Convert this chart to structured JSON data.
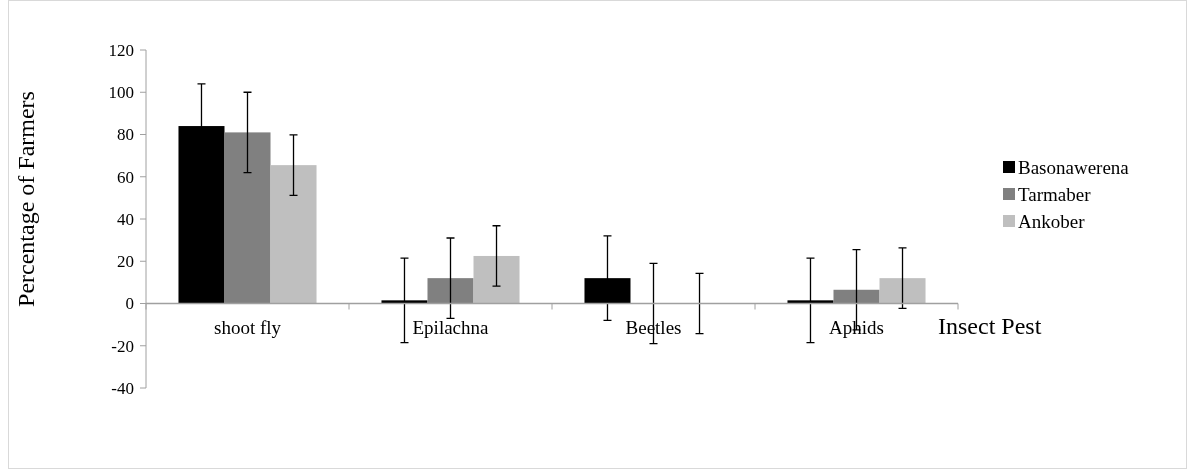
{
  "chart_data": {
    "type": "bar",
    "xlabel": "Insect Pest",
    "ylabel": "Percentage of Farmers",
    "categories": [
      "shoot fly",
      "Epilachna",
      "Beetles",
      "Aphids"
    ],
    "series": [
      {
        "name": "Basonawerena",
        "color": "#000000",
        "values": [
          84,
          1.5,
          12,
          1.5
        ],
        "errors": [
          20,
          20,
          20,
          20
        ]
      },
      {
        "name": "Tarmaber",
        "color": "#808080",
        "values": [
          81,
          12,
          0,
          6.5
        ],
        "errors": [
          19,
          19,
          19,
          19
        ]
      },
      {
        "name": "Ankober",
        "color": "#bfbfbf",
        "values": [
          65.5,
          22.5,
          0,
          12
        ],
        "errors": [
          14.3,
          14.3,
          14.3,
          14.3
        ]
      }
    ],
    "ylim": [
      -40,
      120
    ],
    "yticks": [
      -40,
      -20,
      0,
      20,
      40,
      60,
      80,
      100,
      120
    ],
    "grid": false,
    "legend": "right"
  }
}
